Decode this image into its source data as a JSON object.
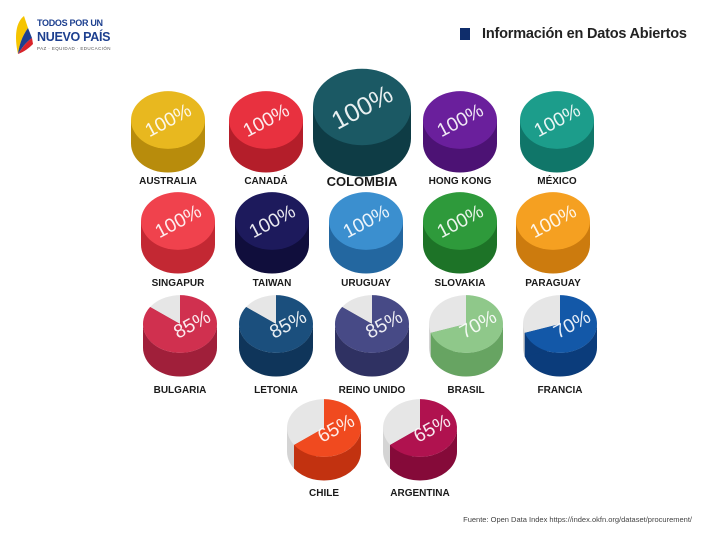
{
  "logo": {
    "line1": "TODOS POR UN",
    "line2": "NUEVO PAÍS",
    "line3": "PAZ · EQUIDAD · EDUCACIÓN"
  },
  "header": {
    "title": "Información en Datos Abiertos"
  },
  "source": "Fuente: Open Data Index https://index.okfn.org/dataset/procurement/",
  "chart_data": {
    "type": "pie",
    "unit": "%",
    "slices": [
      {
        "country": "AUSTRALIA",
        "value": 100,
        "color": "#e8b81f",
        "dark": "#b88c0c"
      },
      {
        "country": "CANADÁ",
        "value": 100,
        "color": "#e8313f",
        "dark": "#b41e2a"
      },
      {
        "country": "COLOMBIA",
        "value": 100,
        "color": "#1b5964",
        "dark": "#0e3c45",
        "highlight": true
      },
      {
        "country": "HONG KONG",
        "value": 100,
        "color": "#6a1f9c",
        "dark": "#4c1274"
      },
      {
        "country": "MÉXICO",
        "value": 100,
        "color": "#1c9d8b",
        "dark": "#107669"
      },
      {
        "country": "SINGAPUR",
        "value": 100,
        "color": "#f0424d",
        "dark": "#c32833"
      },
      {
        "country": "TAIWAN",
        "value": 100,
        "color": "#1d1a5c",
        "dark": "#100e3c"
      },
      {
        "country": "URUGUAY",
        "value": 100,
        "color": "#3b8fcf",
        "dark": "#2367a0"
      },
      {
        "country": "SLOVAKIA",
        "value": 100,
        "color": "#2e9a3b",
        "dark": "#1d7327"
      },
      {
        "country": "PARAGUAY",
        "value": 100,
        "color": "#f5a021",
        "dark": "#cc7b0e"
      },
      {
        "country": "BULGARIA",
        "value": 85,
        "color": "#d0304f",
        "dark": "#a01f3a"
      },
      {
        "country": "LETONIA",
        "value": 85,
        "color": "#1b4f7d",
        "dark": "#0f355a"
      },
      {
        "country": "REINO UNIDO",
        "value": 85,
        "color": "#474a86",
        "dark": "#2f3162"
      },
      {
        "country": "BRASIL",
        "value": 70,
        "color": "#8fc88a",
        "dark": "#67a462"
      },
      {
        "country": "FRANCIA",
        "value": 70,
        "color": "#1358a8",
        "dark": "#0b3c7b"
      },
      {
        "country": "CHILE",
        "value": 65,
        "color": "#f04a1f",
        "dark": "#c23210"
      },
      {
        "country": "ARGENTINA",
        "value": 65,
        "color": "#b0124f",
        "dark": "#850a39"
      }
    ]
  }
}
